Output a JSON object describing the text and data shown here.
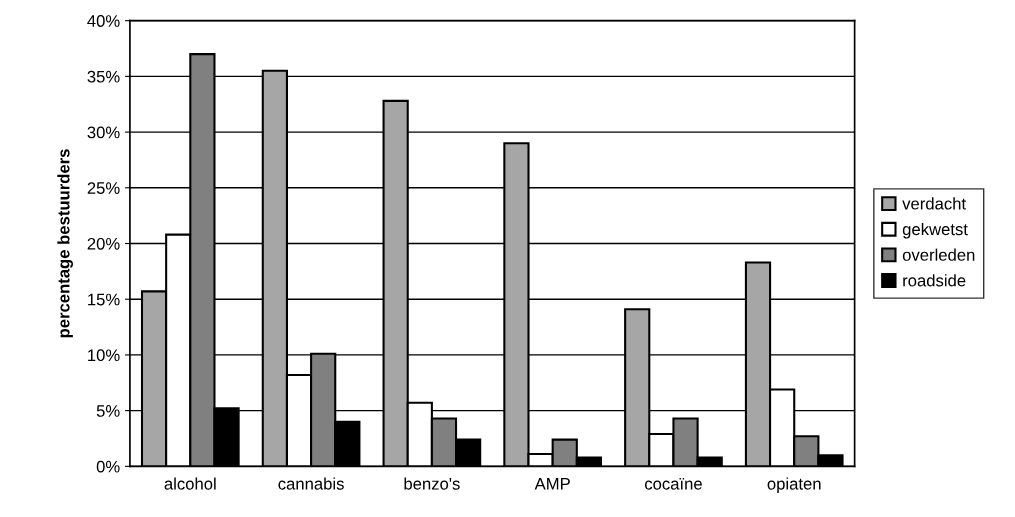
{
  "chart_data": {
    "type": "bar",
    "ylabel": "percentage bestuurders",
    "categories": [
      "alcohol",
      "cannabis",
      "benzo's",
      "AMP",
      "cocaïne",
      "opiaten"
    ],
    "series": [
      {
        "name": "verdacht",
        "color": "#a6a6a6",
        "values": [
          15.7,
          35.5,
          32.8,
          29.0,
          14.1,
          18.3
        ]
      },
      {
        "name": "gekwetst",
        "color": "#ffffff",
        "values": [
          20.8,
          8.2,
          5.7,
          1.1,
          2.9,
          6.9
        ]
      },
      {
        "name": "overleden",
        "color": "#808080",
        "values": [
          37.0,
          10.1,
          4.3,
          2.4,
          4.3,
          2.7
        ]
      },
      {
        "name": "roadside",
        "color": "#000000",
        "values": [
          5.2,
          4.0,
          2.4,
          0.8,
          0.8,
          1.0
        ]
      }
    ],
    "ylim": [
      0,
      40
    ],
    "yticks": [
      {
        "value": 0,
        "label": "0%"
      },
      {
        "value": 5,
        "label": "5%"
      },
      {
        "value": 10,
        "label": "10%"
      },
      {
        "value": 15,
        "label": "15%"
      },
      {
        "value": 20,
        "label": "20%"
      },
      {
        "value": 25,
        "label": "25%"
      },
      {
        "value": 30,
        "label": "30%"
      },
      {
        "value": 35,
        "label": "35%"
      },
      {
        "value": 40,
        "label": "40%"
      }
    ],
    "grid": "y",
    "legend": "right"
  }
}
